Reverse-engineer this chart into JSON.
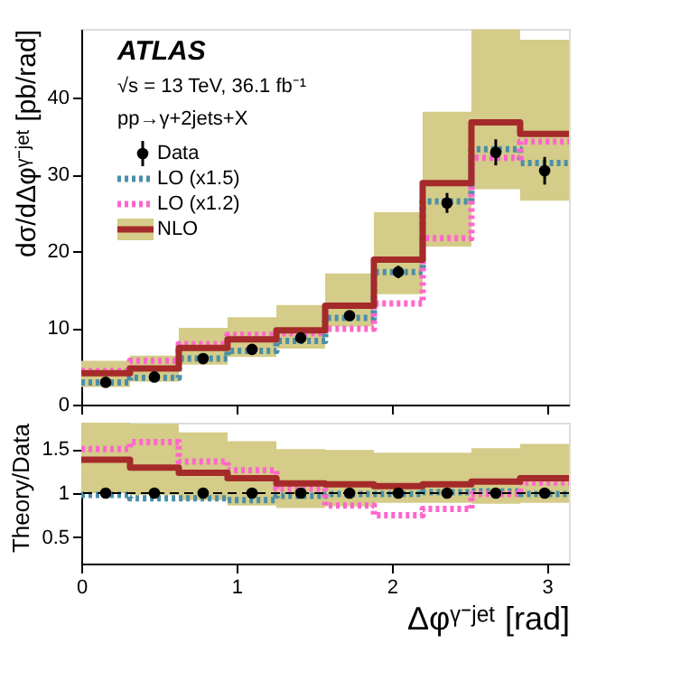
{
  "chart_data": [
    {
      "type": "step",
      "x": [
        0,
        0.314,
        0.628,
        0.942,
        1.257,
        1.571,
        1.885,
        2.199,
        2.513,
        2.827,
        3.1416
      ],
      "xlim": [
        0,
        3.1416
      ],
      "xticks": [
        0,
        1,
        2,
        3
      ],
      "ylim": [
        0,
        49
      ],
      "yticks": [
        0,
        10,
        20,
        30,
        40
      ],
      "ylabel": "dσ/dΔφᵞ⁻ʲᵉᵗ [pb/rad]",
      "tick_labels": "y",
      "grid": false,
      "legend": "top left",
      "annotations": [
        "ATLAS",
        "√s = 13 TeV, 36.1 fb⁻¹",
        "pp→γ+2jets+X"
      ],
      "series": [
        {
          "name": "Data",
          "type": "scatter",
          "marker": "circle",
          "color": "#000000",
          "x": [
            0.157,
            0.471,
            0.785,
            1.1,
            1.414,
            1.728,
            2.042,
            2.356,
            2.67,
            2.985
          ],
          "values": [
            2.9,
            3.6,
            6.0,
            7.2,
            8.7,
            11.6,
            17.3,
            26.3,
            32.9,
            30.5
          ],
          "errors": [
            0.6,
            0.6,
            0.6,
            0.6,
            0.6,
            0.6,
            0.8,
            1.3,
            1.7,
            1.8
          ]
        },
        {
          "name": "LO (x1.5)",
          "color": "#4a8fa8",
          "line_style": "dotted",
          "values": [
            2.9,
            3.5,
            6.0,
            7.0,
            8.3,
            11.3,
            17.3,
            26.5,
            33.3,
            31.5,
            31.5
          ]
        },
        {
          "name": "LO (x1.2)",
          "color": "#ff66cc",
          "line_style": "dotted",
          "values": [
            4.4,
            5.7,
            7.9,
            9.1,
            9.3,
            9.9,
            13.2,
            21.7,
            32.2,
            34.3,
            34.3
          ]
        },
        {
          "name": "NLO",
          "color": "#a52a2a",
          "line_style": "solid",
          "values": [
            4.1,
            4.7,
            7.4,
            8.5,
            9.7,
            12.9,
            18.9,
            28.9,
            36.8,
            35.3,
            35.3
          ],
          "lower": [
            2.3,
            3.0,
            5.2,
            6.2,
            7.3,
            10.2,
            14.4,
            20.6,
            28.1,
            26.6,
            26.6
          ],
          "upper": [
            5.7,
            6.4,
            10.0,
            11.4,
            13.0,
            17.1,
            25.1,
            38.2,
            48.9,
            47.6,
            47.6
          ]
        }
      ]
    },
    {
      "type": "step",
      "x": [
        0,
        0.314,
        0.628,
        0.942,
        1.257,
        1.571,
        1.885,
        2.199,
        2.513,
        2.827,
        3.1416
      ],
      "xlim": [
        0,
        3.1416
      ],
      "xticks": [
        0,
        1,
        2,
        3
      ],
      "ylim": [
        0.2,
        1.8
      ],
      "yticks": [
        0.5,
        1,
        1.5
      ],
      "xlabel": "Δφᵞ⁻ʲᵉᵗ [rad]",
      "ylabel": "Theory/Data",
      "grid": false,
      "ref_lines": [
        {
          "axis": "y",
          "value": 1,
          "color": "#000000",
          "line_style": "dashed"
        }
      ],
      "series": [
        {
          "type": "scatter",
          "marker": "circle",
          "color": "#000000",
          "x": [
            0.157,
            0.471,
            0.785,
            1.1,
            1.414,
            1.728,
            2.042,
            2.356,
            2.67,
            2.985
          ],
          "values": [
            1,
            1,
            1,
            1,
            1,
            1,
            1,
            1,
            1,
            1
          ]
        },
        {
          "color": "#4a8fa8",
          "line_style": "dotted",
          "values": [
            0.98,
            0.94,
            0.94,
            0.92,
            0.97,
            0.99,
            0.99,
            1.01,
            1.02,
            0.99,
            0.99
          ]
        },
        {
          "color": "#ff66cc",
          "line_style": "dotted",
          "values": [
            1.5,
            1.58,
            1.36,
            1.26,
            1.05,
            0.86,
            0.75,
            0.82,
            0.99,
            1.12,
            1.12
          ]
        },
        {
          "color": "#a52a2a",
          "line_style": "solid",
          "values": [
            1.38,
            1.29,
            1.23,
            1.17,
            1.11,
            1.1,
            1.08,
            1.1,
            1.13,
            1.17,
            1.17
          ],
          "lower": [
            1.0,
            0.98,
            0.92,
            0.86,
            0.83,
            0.85,
            0.89,
            0.89,
            0.88,
            0.89,
            0.89
          ],
          "upper": [
            1.8,
            1.79,
            1.69,
            1.59,
            1.5,
            1.49,
            1.46,
            1.46,
            1.51,
            1.56,
            1.56
          ]
        }
      ]
    }
  ]
}
